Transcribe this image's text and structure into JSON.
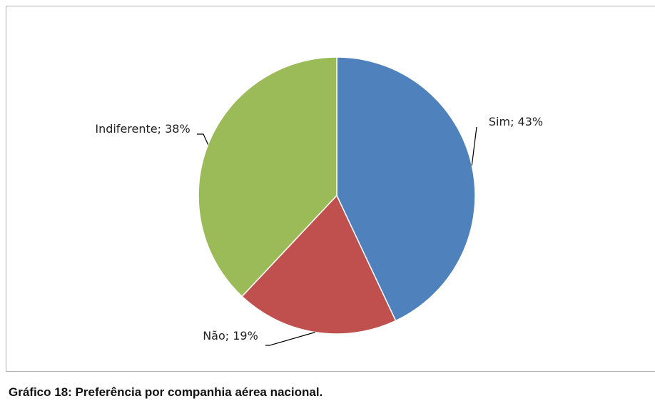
{
  "chart_data": {
    "type": "pie",
    "title": "Gráfico 18: Preferência por companhia aérea nacional.",
    "categories": [
      "Sim",
      "Não",
      "Indiferente"
    ],
    "values": [
      43,
      19,
      38
    ],
    "value_labels": [
      "Sim; 43%",
      "Não; 19%",
      "Indiferente; 38%"
    ],
    "colors": [
      "#4f81bd",
      "#c0504d",
      "#9bbb59"
    ]
  }
}
